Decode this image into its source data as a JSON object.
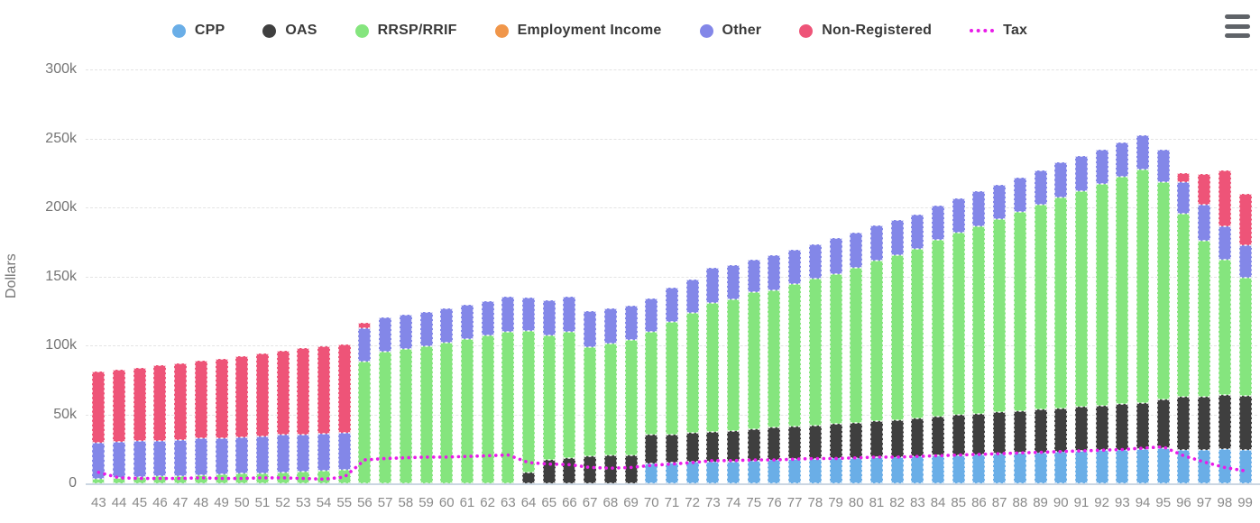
{
  "legend": {
    "items": [
      {
        "label": "CPP",
        "color": "#6AAEE7",
        "type": "bar"
      },
      {
        "label": "OAS",
        "color": "#3F3F3F",
        "type": "bar"
      },
      {
        "label": "RRSP/RRIF",
        "color": "#85E57E",
        "type": "bar"
      },
      {
        "label": "Employment Income",
        "color": "#F0964A",
        "type": "bar"
      },
      {
        "label": "Other",
        "color": "#8387E8",
        "type": "bar"
      },
      {
        "label": "Non-Registered",
        "color": "#EE5478",
        "type": "bar"
      },
      {
        "label": "Tax",
        "color": "#E91BE9",
        "type": "line"
      }
    ]
  },
  "y_axis": {
    "title": "Dollars",
    "tick_labels": [
      "0",
      "50k",
      "100k",
      "150k",
      "200k",
      "250k",
      "300k"
    ],
    "tick_values_k": [
      0,
      50,
      100,
      150,
      200,
      250,
      300
    ]
  },
  "chart_data": {
    "type": "bar",
    "stacked": true,
    "title": "",
    "xlabel": "",
    "ylabel": "Dollars",
    "value_unit": "thousand dollars",
    "ylim": [
      0,
      300
    ],
    "grid": true,
    "legend_position": "top",
    "categories": [
      43,
      44,
      45,
      46,
      47,
      48,
      49,
      50,
      51,
      52,
      53,
      54,
      55,
      56,
      57,
      58,
      59,
      60,
      61,
      62,
      63,
      64,
      65,
      66,
      67,
      68,
      69,
      70,
      71,
      72,
      73,
      74,
      75,
      76,
      77,
      78,
      79,
      80,
      81,
      82,
      83,
      84,
      85,
      86,
      87,
      88,
      89,
      90,
      91,
      92,
      93,
      94,
      95,
      96,
      97,
      98,
      99
    ],
    "series": [
      {
        "name": "CPP",
        "values": [
          0,
          0,
          0,
          0,
          0,
          0,
          0,
          0,
          0,
          0,
          0,
          0,
          0,
          0,
          0,
          0,
          0,
          0,
          0,
          0,
          0,
          0,
          0,
          0,
          0,
          0,
          0,
          14.5,
          15,
          15.5,
          16,
          16,
          16.5,
          17,
          17.5,
          17.5,
          18,
          18.5,
          19,
          19,
          19.5,
          20,
          20.5,
          21,
          21.5,
          22,
          22.5,
          23,
          23.5,
          24,
          24.5,
          25,
          25.5,
          24.5,
          24.5,
          25,
          24.5
        ]
      },
      {
        "name": "OAS",
        "values": [
          0,
          0,
          0,
          0,
          0,
          0,
          0,
          0,
          0,
          0,
          0,
          0,
          0,
          0,
          0,
          0,
          0,
          0,
          0,
          0,
          0,
          8,
          17,
          18.5,
          19.5,
          20,
          20.5,
          20.5,
          20.5,
          21,
          21.5,
          22,
          22.5,
          23.5,
          24,
          24.5,
          25,
          25.5,
          26,
          27,
          27.5,
          28.5,
          29,
          29.5,
          30,
          30.5,
          31,
          31.5,
          32,
          32.5,
          33,
          33.5,
          35.5,
          38.5,
          38.5,
          39,
          39
        ]
      },
      {
        "name": "RRSP/RRIF",
        "values": [
          3.5,
          4,
          4.5,
          5,
          5.5,
          6,
          6.5,
          7,
          7.5,
          8,
          8.5,
          9,
          9.5,
          88,
          95.5,
          97.5,
          99.5,
          102,
          104.5,
          107,
          110,
          102.5,
          90.5,
          91,
          79,
          81.5,
          83.5,
          74.5,
          81.5,
          87,
          93.5,
          95.5,
          99.5,
          99.5,
          103,
          106.5,
          108.5,
          112.5,
          116.5,
          119.5,
          123,
          128,
          132,
          135.5,
          140,
          144,
          148.5,
          152.5,
          156.5,
          160.5,
          164.5,
          169,
          157.5,
          132.5,
          113,
          98,
          85.5
        ]
      },
      {
        "name": "Employment Income",
        "values": [
          0,
          0,
          0,
          0,
          0,
          0,
          0,
          0,
          0,
          0,
          0,
          0,
          0,
          0,
          0,
          0,
          0,
          0,
          0,
          0,
          0,
          0,
          0,
          0,
          0,
          0,
          0,
          0,
          0,
          0,
          0,
          0,
          0,
          0,
          0,
          0,
          0,
          0,
          0,
          0,
          0,
          0,
          0,
          0,
          0,
          0,
          0,
          0,
          0,
          0,
          0,
          0,
          0,
          0,
          0,
          0,
          0
        ]
      },
      {
        "name": "Other",
        "values": [
          26,
          26,
          26,
          26,
          26,
          26.5,
          26.5,
          26.5,
          26.5,
          27,
          27,
          27,
          27,
          24.5,
          24.5,
          24.5,
          24.5,
          25,
          25,
          25,
          25,
          24,
          25,
          25.5,
          26.5,
          25,
          25,
          24.5,
          25,
          24.5,
          25,
          24.5,
          23.5,
          25.5,
          24.5,
          25,
          26,
          25,
          25.5,
          25.5,
          25,
          25,
          25,
          25.5,
          25,
          25,
          25,
          25.5,
          25,
          25,
          25,
          25,
          23.5,
          23,
          26,
          24,
          23.5
        ]
      },
      {
        "name": "Non-Registered",
        "values": [
          51.5,
          52.5,
          53.5,
          54.5,
          55.5,
          56.5,
          57.5,
          58.5,
          60,
          61,
          62.5,
          63.5,
          64,
          4,
          0,
          0,
          0,
          0,
          0,
          0,
          0,
          0,
          0,
          0,
          0,
          0,
          0,
          0,
          0,
          0,
          0,
          0,
          0,
          0,
          0,
          0,
          0,
          0,
          0,
          0,
          0,
          0,
          0,
          0,
          0,
          0,
          0,
          0,
          0,
          0,
          0,
          0,
          0,
          6.5,
          22.5,
          40.5,
          37.5
        ]
      }
    ],
    "line_series": {
      "name": "Tax",
      "values": [
        8,
        4,
        3.5,
        3.5,
        3.5,
        4,
        3.5,
        3.5,
        4,
        4,
        3.5,
        3,
        4.5,
        17,
        18,
        18.5,
        19,
        19,
        19.5,
        20,
        20.5,
        15,
        14,
        13.5,
        11.5,
        11,
        11.5,
        13,
        14,
        15,
        16.5,
        16.5,
        17,
        17,
        17.5,
        18,
        18,
        18.5,
        19,
        19,
        19.5,
        20,
        20.5,
        21,
        21.5,
        22,
        22.5,
        23,
        23.5,
        24,
        24.5,
        25.5,
        26.5,
        20,
        15.5,
        11.5,
        9
      ]
    }
  }
}
